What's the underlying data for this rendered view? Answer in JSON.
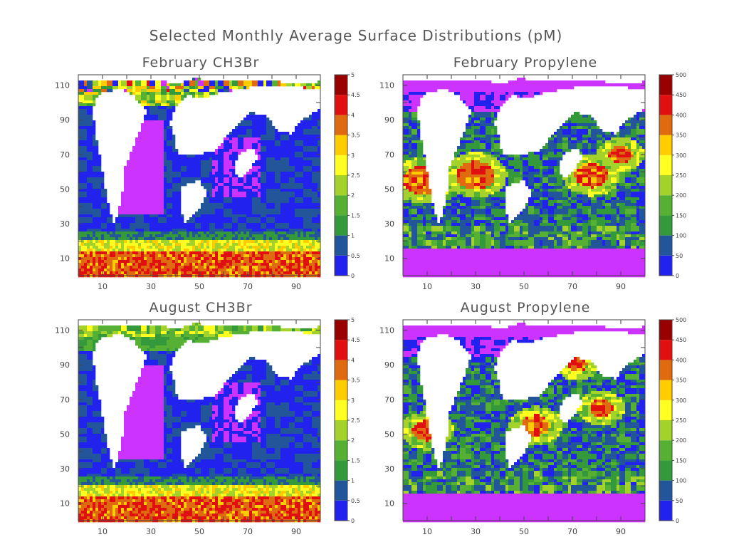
{
  "title": "Selected Monthly Average Surface Distributions (pM)",
  "colors": {
    "levels": [
      "#cc33ff",
      "#2222ee",
      "#225599",
      "#33993a",
      "#55b033",
      "#a3d22b",
      "#ffff22",
      "#ffcc00",
      "#e06a10",
      "#e01010",
      "#990000"
    ],
    "land": "#ffffff",
    "axis": "#444444"
  },
  "chart_data": [
    {
      "type": "heatmap",
      "title": "February CH3Br",
      "x_ticks": [
        "10",
        "30",
        "50",
        "70",
        "90"
      ],
      "y_ticks": [
        "10",
        "30",
        "50",
        "70",
        "90",
        "110"
      ],
      "xlim": [
        0,
        100
      ],
      "ylim": [
        0,
        116
      ],
      "colorbar_labels": [
        "0",
        "0.5",
        "1",
        "1.5",
        "2",
        "2.5",
        "3",
        "3.5",
        "4",
        "4.5",
        "5"
      ],
      "colorbar_range": [
        0,
        5
      ],
      "variable": "ch3br",
      "month": "feb"
    },
    {
      "type": "heatmap",
      "title": "February Propylene",
      "x_ticks": [
        "10",
        "30",
        "50",
        "70",
        "90"
      ],
      "y_ticks": [
        "10",
        "30",
        "50",
        "70",
        "90",
        "110"
      ],
      "xlim": [
        0,
        100
      ],
      "ylim": [
        0,
        116
      ],
      "colorbar_labels": [
        "0",
        "50",
        "100",
        "150",
        "200",
        "250",
        "300",
        "350",
        "400",
        "450",
        "500"
      ],
      "colorbar_range": [
        0,
        500
      ],
      "variable": "propylene",
      "month": "feb"
    },
    {
      "type": "heatmap",
      "title": "August CH3Br",
      "x_ticks": [
        "10",
        "30",
        "50",
        "70",
        "90"
      ],
      "y_ticks": [
        "10",
        "30",
        "50",
        "70",
        "90",
        "110"
      ],
      "xlim": [
        0,
        100
      ],
      "ylim": [
        0,
        116
      ],
      "colorbar_labels": [
        "0",
        "0.5",
        "1",
        "1.5",
        "2",
        "2.5",
        "3",
        "3.5",
        "4",
        "4.5",
        "5"
      ],
      "colorbar_range": [
        0,
        5
      ],
      "variable": "ch3br",
      "month": "aug"
    },
    {
      "type": "heatmap",
      "title": "August Propylene",
      "x_ticks": [
        "10",
        "30",
        "50",
        "70",
        "90"
      ],
      "y_ticks": [
        "10",
        "30",
        "50",
        "70",
        "90",
        "110"
      ],
      "xlim": [
        0,
        100
      ],
      "ylim": [
        0,
        116
      ],
      "colorbar_labels": [
        "0",
        "50",
        "100",
        "150",
        "200",
        "250",
        "300",
        "350",
        "400",
        "450",
        "500"
      ],
      "colorbar_range": [
        0,
        500
      ],
      "variable": "propylene",
      "month": "aug"
    }
  ]
}
